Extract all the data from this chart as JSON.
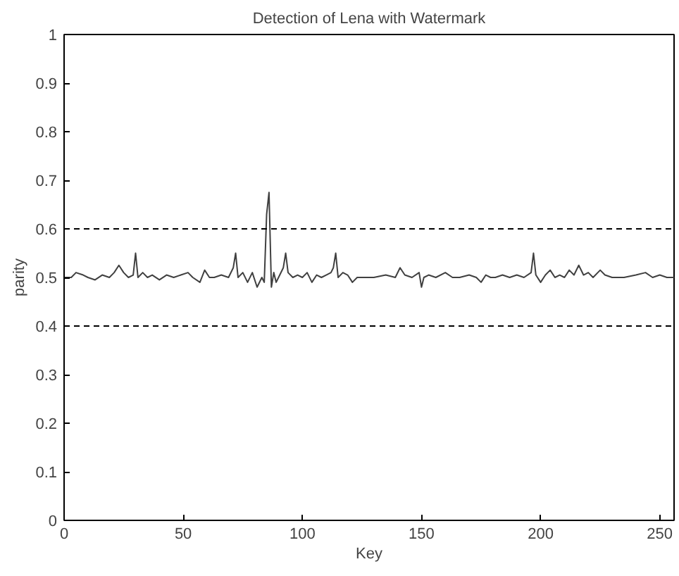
{
  "chart_data": {
    "type": "line",
    "title": "Detection of Lena with Watermark",
    "xlabel": "Key",
    "ylabel": "parity",
    "xlim": [
      0,
      256
    ],
    "ylim": [
      0,
      1
    ],
    "xticks": [
      0,
      50,
      100,
      150,
      200,
      250
    ],
    "yticks": [
      0,
      0.1,
      0.2,
      0.3,
      0.4,
      0.5,
      0.6,
      0.7,
      0.8,
      0.9,
      1
    ],
    "grid": false,
    "line_style": "solid",
    "ref_lines": [
      {
        "axis": "y",
        "value": 0.6,
        "color": "#000000",
        "line_style": "dashed"
      },
      {
        "axis": "y",
        "value": 0.4,
        "color": "#000000",
        "line_style": "dashed"
      }
    ],
    "series": [
      {
        "color": "#404040",
        "x": [
          0,
          3,
          5,
          8,
          10,
          13,
          16,
          19,
          21,
          23,
          25,
          27,
          29,
          30,
          31,
          33,
          35,
          37,
          40,
          43,
          46,
          49,
          52,
          54,
          57,
          59,
          61,
          63,
          66,
          69,
          71,
          72,
          73,
          75,
          77,
          79,
          81,
          83,
          84,
          85,
          86,
          87,
          88,
          89,
          90,
          92,
          93,
          94,
          96,
          98,
          100,
          102,
          104,
          106,
          108,
          110,
          112,
          113,
          114,
          115,
          117,
          119,
          121,
          123,
          126,
          130,
          135,
          139,
          141,
          143,
          146,
          149,
          150,
          151,
          153,
          156,
          160,
          163,
          166,
          170,
          173,
          175,
          177,
          179,
          181,
          184,
          187,
          190,
          193,
          196,
          197,
          198,
          200,
          202,
          204,
          206,
          208,
          210,
          212,
          214,
          216,
          218,
          220,
          222,
          225,
          227,
          230,
          235,
          240,
          244,
          247,
          250,
          253,
          256
        ],
        "values": [
          0.5,
          0.5,
          0.51,
          0.505,
          0.5,
          0.495,
          0.505,
          0.5,
          0.51,
          0.525,
          0.51,
          0.5,
          0.505,
          0.55,
          0.5,
          0.51,
          0.5,
          0.505,
          0.495,
          0.505,
          0.5,
          0.505,
          0.51,
          0.5,
          0.49,
          0.515,
          0.5,
          0.5,
          0.505,
          0.5,
          0.52,
          0.55,
          0.5,
          0.51,
          0.49,
          0.51,
          0.48,
          0.5,
          0.49,
          0.63,
          0.675,
          0.48,
          0.51,
          0.49,
          0.5,
          0.52,
          0.55,
          0.51,
          0.5,
          0.505,
          0.5,
          0.51,
          0.49,
          0.505,
          0.5,
          0.505,
          0.51,
          0.52,
          0.55,
          0.5,
          0.51,
          0.505,
          0.49,
          0.5,
          0.5,
          0.5,
          0.505,
          0.5,
          0.52,
          0.505,
          0.5,
          0.51,
          0.48,
          0.5,
          0.505,
          0.5,
          0.51,
          0.5,
          0.5,
          0.505,
          0.5,
          0.49,
          0.505,
          0.5,
          0.5,
          0.505,
          0.5,
          0.505,
          0.5,
          0.51,
          0.55,
          0.505,
          0.49,
          0.505,
          0.515,
          0.5,
          0.505,
          0.5,
          0.515,
          0.505,
          0.525,
          0.505,
          0.51,
          0.5,
          0.515,
          0.505,
          0.5,
          0.5,
          0.505,
          0.51,
          0.5,
          0.505,
          0.5,
          0.5
        ]
      }
    ]
  }
}
